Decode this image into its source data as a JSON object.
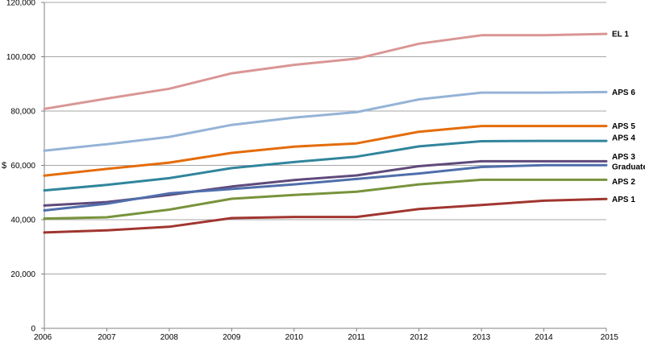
{
  "chart_data": {
    "type": "line",
    "title": "",
    "xlabel": "",
    "ylabel": "$",
    "x": [
      "2006",
      "2007",
      "2008",
      "2009",
      "2010",
      "2011",
      "2012",
      "2013",
      "2014",
      "2015"
    ],
    "ylim": [
      0,
      120000
    ],
    "yticks": [
      0,
      20000,
      40000,
      60000,
      80000,
      100000,
      120000
    ],
    "ytick_labels": [
      "0",
      "20,000",
      "40,000",
      "60,000",
      "80,000",
      "100,000",
      "120,000"
    ],
    "grid": true,
    "legend": "end-of-line labels",
    "series": [
      {
        "name": "EL 1",
        "color": "#d99694",
        "values": [
          80800,
          84600,
          88200,
          93900,
          97000,
          99300,
          104800,
          107900,
          107900,
          108400
        ]
      },
      {
        "name": "APS 6",
        "color": "#95b3d7",
        "values": [
          65400,
          67800,
          70500,
          74900,
          77600,
          79600,
          84300,
          86800,
          86800,
          87000
        ]
      },
      {
        "name": "APS 5",
        "color": "#e46c0a",
        "values": [
          56200,
          58700,
          61000,
          64600,
          66900,
          68100,
          72400,
          74500,
          74500,
          74500
        ]
      },
      {
        "name": "APS 4",
        "color": "#31859c",
        "values": [
          50800,
          52800,
          55300,
          59000,
          61200,
          63200,
          67000,
          68900,
          69000,
          69000
        ]
      },
      {
        "name": "APS 3",
        "color": "#604a7b",
        "values": [
          45200,
          46500,
          49100,
          52200,
          54600,
          56300,
          59700,
          61500,
          61500,
          61500
        ]
      },
      {
        "name": "Graduate",
        "color": "#4f6eab",
        "values": [
          43400,
          45900,
          49700,
          51300,
          53000,
          55000,
          57000,
          59400,
          60100,
          60100
        ]
      },
      {
        "name": "APS 2",
        "color": "#77933c",
        "values": [
          40400,
          40900,
          43700,
          47700,
          49100,
          50300,
          53000,
          54700,
          54700,
          54700
        ]
      },
      {
        "name": "APS 1",
        "color": "#a0352f",
        "values": [
          35300,
          36100,
          37400,
          40600,
          41000,
          41000,
          43900,
          45400,
          47000,
          47600
        ]
      }
    ]
  }
}
